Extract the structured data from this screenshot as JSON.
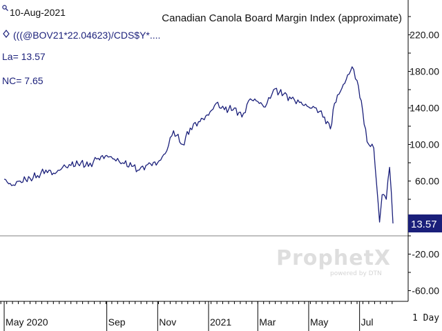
{
  "header": {
    "date": "10-Aug-2021",
    "formula": "(((@BOV21*22.04623)/CDS$Y*....",
    "last": "La= 13.57",
    "net_change": "NC= 7.65",
    "date_icon": "magnifier-icon",
    "formula_icon": "diamond-icon"
  },
  "watermark": {
    "brand": "ProphetX",
    "tagline": "powered by DTN"
  },
  "periodicity": "1 Day",
  "colors": {
    "line": "#1a1f7a",
    "badge_bg": "#1a1f7a",
    "badge_text": "#ffffff",
    "axis": "#000000",
    "zero_line": "#9a9a9a"
  },
  "chart_data": {
    "type": "line",
    "title": "Canadian Canola Board Margin Index (approximate)",
    "xlabel": "",
    "ylabel": "",
    "x_tick_labels": [
      "May 2020",
      "Sep",
      "Nov",
      "2021",
      "Mar",
      "May",
      "Jul"
    ],
    "y_ticks": [
      220,
      180,
      140,
      100,
      60,
      20,
      -20,
      -60
    ],
    "y_tick_labels": [
      "220.00",
      "180.00",
      "140.00",
      "100.00",
      "60.00",
      "20.00",
      "-20.00",
      "-60.00"
    ],
    "ylim": [
      -70,
      245
    ],
    "grid": false,
    "last_value": 13.57,
    "last_value_label": "13.57",
    "reference_line": 0,
    "series": [
      {
        "x": [
          "2020-05-01",
          "2020-05-10",
          "2020-05-20",
          "2020-06-01",
          "2020-06-10",
          "2020-06-20",
          "2020-07-01",
          "2020-07-10",
          "2020-07-20",
          "2020-08-01",
          "2020-08-10",
          "2020-08-20",
          "2020-09-01",
          "2020-09-10",
          "2020-09-20",
          "2020-10-01",
          "2020-10-10",
          "2020-10-20",
          "2020-11-01",
          "2020-11-10",
          "2020-11-20",
          "2020-12-01",
          "2020-12-10",
          "2020-12-20",
          "2021-01-01",
          "2021-01-10",
          "2021-01-20",
          "2021-02-01",
          "2021-02-10",
          "2021-02-20",
          "2021-03-01",
          "2021-03-10",
          "2021-03-20",
          "2021-04-01",
          "2021-04-10",
          "2021-04-20",
          "2021-05-01",
          "2021-05-10",
          "2021-05-20",
          "2021-05-27",
          "2021-06-01",
          "2021-06-08",
          "2021-06-15",
          "2021-06-22",
          "2021-06-28",
          "2021-07-03",
          "2021-07-10",
          "2021-07-18",
          "2021-07-25",
          "2021-07-28",
          "2021-08-02",
          "2021-08-06",
          "2021-08-10"
        ],
        "y": [
          62,
          55,
          60,
          63,
          66,
          72,
          68,
          75,
          77,
          80,
          76,
          84,
          88,
          84,
          80,
          76,
          72,
          78,
          80,
          90,
          115,
          100,
          118,
          125,
          132,
          145,
          138,
          140,
          130,
          150,
          147,
          141,
          160,
          155,
          150,
          146,
          141,
          140,
          130,
          117,
          145,
          158,
          171,
          185,
          170,
          148,
          103,
          96,
          15,
          45,
          40,
          75,
          13.57
        ]
      }
    ]
  }
}
